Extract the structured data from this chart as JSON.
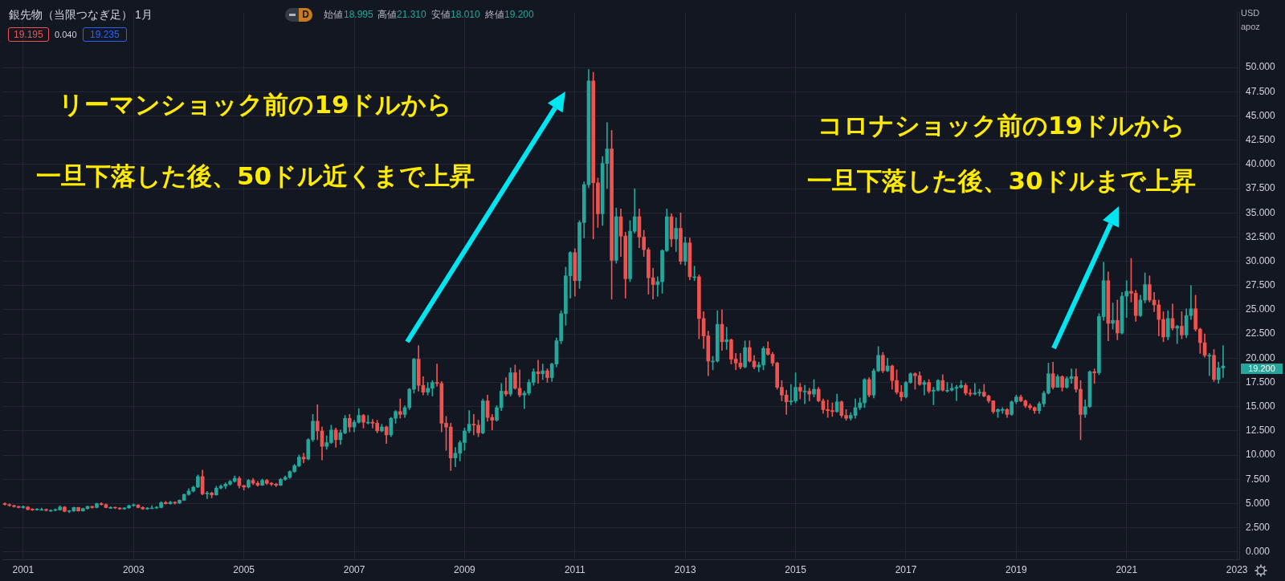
{
  "chart_data": {
    "type": "candlestick",
    "title": "銀先物（当限つなぎ足）",
    "subtitle": "1月",
    "grid": true,
    "legend": false,
    "ylim": [
      -0.8,
      55.7
    ],
    "yticks": [
      {
        "value": 0,
        "label": "0.000"
      },
      {
        "value": 2.5,
        "label": "2.500"
      },
      {
        "value": 5,
        "label": "5.000"
      },
      {
        "value": 7.5,
        "label": "7.500"
      },
      {
        "value": 10,
        "label": "10.000"
      },
      {
        "value": 12.5,
        "label": "12.500"
      },
      {
        "value": 15,
        "label": "15.000"
      },
      {
        "value": 17.5,
        "label": "17.500"
      },
      {
        "value": 20,
        "label": "20.000"
      },
      {
        "value": 22.5,
        "label": "22.500"
      },
      {
        "value": 25,
        "label": "25.000"
      },
      {
        "value": 27.5,
        "label": "27.500"
      },
      {
        "value": 30,
        "label": "30.000"
      },
      {
        "value": 32.5,
        "label": "32.500"
      },
      {
        "value": 35,
        "label": "35.000"
      },
      {
        "value": 37.5,
        "label": "37.500"
      },
      {
        "value": 40,
        "label": "40.000"
      },
      {
        "value": 42.5,
        "label": "42.500"
      },
      {
        "value": 45,
        "label": "45.000"
      },
      {
        "value": 47.5,
        "label": "47.500"
      },
      {
        "value": 50,
        "label": "50.000"
      }
    ],
    "annotations": [
      "D",
      "始値",
      "18.995",
      "高値",
      "21.310",
      "安値",
      "18.010",
      "終値",
      "19.200",
      "19.195",
      "0.040",
      "19.235",
      "USD",
      "apoz",
      "リーマンショック前の19ドルから",
      "一旦下落した後、50ドル近くまで上昇",
      "コロナショック前の19ドルから",
      "一旦下落した後、30ドルまで上昇",
      "19.200"
    ],
    "categories": [
      null,
      null,
      null,
      null,
      "2001",
      null,
      null,
      null,
      null,
      null,
      null,
      null,
      null,
      null,
      null,
      null,
      null,
      null,
      null,
      null,
      null,
      null,
      null,
      null,
      null,
      null,
      null,
      null,
      "2003",
      null,
      null,
      null,
      null,
      null,
      null,
      null,
      null,
      null,
      null,
      null,
      null,
      null,
      null,
      null,
      null,
      null,
      null,
      null,
      null,
      null,
      null,
      null,
      "2005",
      null,
      null,
      null,
      null,
      null,
      null,
      null,
      null,
      null,
      null,
      null,
      null,
      null,
      null,
      null,
      null,
      null,
      null,
      null,
      null,
      null,
      null,
      null,
      "2007",
      null,
      null,
      null,
      null,
      null,
      null,
      null,
      null,
      null,
      null,
      null,
      null,
      null,
      null,
      null,
      null,
      null,
      null,
      null,
      null,
      null,
      null,
      null,
      "2009",
      null,
      null,
      null,
      null,
      null,
      null,
      null,
      null,
      null,
      null,
      null,
      null,
      null,
      null,
      null,
      null,
      null,
      null,
      null,
      null,
      null,
      null,
      null,
      "2011",
      null,
      null,
      null,
      null,
      null,
      null,
      null,
      null,
      null,
      null,
      null,
      null,
      null,
      null,
      null,
      null,
      null,
      null,
      null,
      null,
      null,
      null,
      null,
      "2013",
      null,
      null,
      null,
      null,
      null,
      null,
      null,
      null,
      null,
      null,
      null,
      null,
      null,
      null,
      null,
      null,
      null,
      null,
      null,
      null,
      null,
      null,
      null,
      "2015",
      null,
      null,
      null,
      null,
      null,
      null,
      null,
      null,
      null,
      null,
      null,
      null,
      null,
      null,
      null,
      null,
      null,
      null,
      null,
      null,
      null,
      null,
      null,
      "2017",
      null,
      null,
      null,
      null,
      null,
      null,
      null,
      null,
      null,
      null,
      null,
      null,
      null,
      null,
      null,
      null,
      null,
      null,
      null,
      null,
      null,
      null,
      null,
      "2019",
      null,
      null,
      null,
      null,
      null,
      null,
      null,
      null,
      null,
      null,
      null,
      null,
      null,
      null,
      null,
      null,
      null,
      null,
      null,
      null,
      null,
      null,
      null,
      "2021",
      null,
      null,
      null,
      null,
      null,
      null,
      null,
      null,
      null,
      null,
      null,
      null,
      null,
      null,
      null,
      null,
      null,
      null,
      null,
      null,
      null,
      null,
      null,
      "2023"
    ],
    "ohlc": [
      [
        5.0,
        5.1,
        4.85,
        4.9
      ],
      [
        4.9,
        4.98,
        4.72,
        4.8
      ],
      [
        4.8,
        4.85,
        4.62,
        4.7
      ],
      [
        4.7,
        4.72,
        4.55,
        4.6
      ],
      [
        4.6,
        4.78,
        4.52,
        4.65
      ],
      [
        4.65,
        4.7,
        4.35,
        4.4
      ],
      [
        4.4,
        4.48,
        4.28,
        4.35
      ],
      [
        4.35,
        4.5,
        4.3,
        4.4
      ],
      [
        4.4,
        4.55,
        4.32,
        4.4
      ],
      [
        4.4,
        4.45,
        4.22,
        4.3
      ],
      [
        4.3,
        4.38,
        4.18,
        4.3
      ],
      [
        4.3,
        4.45,
        4.25,
        4.35
      ],
      [
        4.35,
        4.8,
        4.3,
        4.65
      ],
      [
        4.65,
        4.7,
        4.15,
        4.2
      ],
      [
        4.2,
        4.3,
        4.05,
        4.25
      ],
      [
        4.25,
        4.65,
        4.18,
        4.6
      ],
      [
        4.6,
        4.62,
        4.2,
        4.25
      ],
      [
        4.25,
        4.55,
        4.2,
        4.5
      ],
      [
        4.5,
        4.75,
        4.42,
        4.7
      ],
      [
        4.7,
        4.72,
        4.52,
        4.6
      ],
      [
        4.6,
        5.05,
        4.55,
        5.0
      ],
      [
        5.0,
        5.1,
        4.85,
        4.9
      ],
      [
        4.9,
        4.98,
        4.55,
        4.6
      ],
      [
        4.6,
        4.68,
        4.5,
        4.6
      ],
      [
        4.6,
        4.65,
        4.48,
        4.55
      ],
      [
        4.55,
        4.6,
        4.38,
        4.45
      ],
      [
        4.45,
        4.6,
        4.4,
        4.55
      ],
      [
        4.55,
        4.85,
        4.5,
        4.8
      ],
      [
        4.8,
        4.98,
        4.72,
        4.85
      ],
      [
        4.85,
        4.9,
        4.55,
        4.6
      ],
      [
        4.6,
        4.68,
        4.38,
        4.45
      ],
      [
        4.45,
        4.6,
        4.4,
        4.55
      ],
      [
        4.55,
        4.8,
        4.5,
        4.55
      ],
      [
        4.55,
        4.7,
        4.48,
        4.6
      ],
      [
        4.6,
        5.2,
        4.55,
        5.1
      ],
      [
        5.1,
        5.25,
        4.95,
        5.0
      ],
      [
        5.0,
        5.25,
        4.92,
        5.15
      ],
      [
        5.15,
        5.2,
        4.95,
        5.05
      ],
      [
        5.05,
        5.4,
        5.0,
        5.35
      ],
      [
        5.35,
        6.0,
        5.3,
        5.95
      ],
      [
        5.95,
        6.55,
        5.85,
        6.3
      ],
      [
        6.3,
        6.8,
        6.2,
        6.7
      ],
      [
        6.7,
        7.95,
        6.65,
        7.8
      ],
      [
        7.8,
        8.45,
        5.9,
        6.0
      ],
      [
        6.0,
        6.25,
        5.5,
        6.1
      ],
      [
        6.1,
        6.2,
        5.6,
        5.9
      ],
      [
        5.9,
        6.8,
        5.85,
        6.6
      ],
      [
        6.6,
        6.95,
        6.5,
        6.8
      ],
      [
        6.8,
        7.15,
        6.55,
        7.0
      ],
      [
        7.0,
        7.4,
        6.9,
        7.3
      ],
      [
        7.3,
        7.85,
        7.2,
        7.6
      ],
      [
        7.6,
        7.8,
        6.6,
        6.85
      ],
      [
        6.85,
        6.9,
        6.4,
        6.7
      ],
      [
        6.7,
        7.5,
        6.6,
        7.4
      ],
      [
        7.4,
        7.6,
        6.95,
        7.1
      ],
      [
        7.1,
        7.3,
        6.8,
        6.9
      ],
      [
        6.9,
        7.55,
        6.85,
        7.4
      ],
      [
        7.4,
        7.5,
        6.95,
        7.1
      ],
      [
        7.1,
        7.2,
        6.85,
        7.0
      ],
      [
        7.0,
        7.1,
        6.75,
        6.9
      ],
      [
        6.9,
        7.6,
        6.85,
        7.5
      ],
      [
        7.5,
        7.85,
        7.4,
        7.7
      ],
      [
        7.7,
        8.4,
        7.6,
        8.3
      ],
      [
        8.3,
        9.05,
        8.2,
        8.9
      ],
      [
        8.9,
        10.0,
        8.8,
        9.8
      ],
      [
        9.8,
        10.2,
        9.2,
        9.6
      ],
      [
        9.6,
        11.7,
        9.5,
        11.6
      ],
      [
        11.6,
        14.2,
        11.4,
        13.5
      ],
      [
        13.5,
        15.2,
        11.6,
        12.5
      ],
      [
        12.5,
        12.9,
        9.5,
        10.9
      ],
      [
        10.9,
        12.0,
        10.6,
        11.3
      ],
      [
        11.3,
        13.1,
        11.2,
        12.6
      ],
      [
        12.6,
        12.8,
        10.8,
        11.6
      ],
      [
        11.6,
        12.6,
        11.1,
        12.3
      ],
      [
        12.3,
        14.1,
        12.2,
        13.8
      ],
      [
        13.8,
        14.2,
        12.4,
        12.9
      ],
      [
        12.9,
        13.6,
        12.4,
        13.4
      ],
      [
        13.4,
        14.8,
        13.3,
        14.1
      ],
      [
        14.1,
        14.2,
        12.8,
        13.4
      ],
      [
        13.4,
        14.1,
        13.2,
        13.4
      ],
      [
        13.4,
        13.7,
        12.8,
        13.3
      ],
      [
        13.3,
        13.6,
        12.3,
        12.5
      ],
      [
        12.5,
        13.2,
        12.4,
        12.9
      ],
      [
        12.9,
        13.0,
        11.2,
        12.1
      ],
      [
        12.1,
        13.9,
        11.9,
        13.8
      ],
      [
        13.8,
        14.6,
        13.3,
        14.5
      ],
      [
        14.5,
        15.8,
        13.8,
        14.2
      ],
      [
        14.2,
        15.1,
        13.9,
        14.9
      ],
      [
        14.9,
        16.9,
        14.7,
        16.8
      ],
      [
        16.8,
        20.0,
        16.4,
        19.9
      ],
      [
        19.9,
        21.3,
        16.6,
        17.2
      ],
      [
        17.2,
        18.1,
        16.2,
        16.5
      ],
      [
        16.5,
        17.5,
        16.2,
        16.9
      ],
      [
        16.9,
        17.7,
        16.1,
        17.5
      ],
      [
        17.5,
        19.4,
        17.1,
        17.4
      ],
      [
        17.4,
        17.6,
        12.4,
        13.3
      ],
      [
        13.3,
        14.0,
        10.5,
        12.9
      ],
      [
        12.9,
        13.3,
        8.4,
        9.7
      ],
      [
        9.7,
        10.8,
        8.8,
        10.2
      ],
      [
        10.2,
        11.5,
        9.4,
        11.3
      ],
      [
        11.3,
        12.8,
        10.5,
        12.5
      ],
      [
        12.5,
        14.6,
        12.3,
        13.2
      ],
      [
        13.2,
        14.2,
        12.1,
        13.1
      ],
      [
        13.1,
        13.6,
        11.9,
        12.3
      ],
      [
        12.3,
        15.8,
        12.2,
        15.6
      ],
      [
        15.6,
        16.2,
        13.5,
        13.9
      ],
      [
        13.9,
        14.2,
        12.6,
        13.6
      ],
      [
        13.6,
        15.1,
        13.5,
        14.9
      ],
      [
        14.9,
        17.4,
        14.6,
        16.6
      ],
      [
        16.6,
        18.0,
        16.1,
        16.3
      ],
      [
        16.3,
        19.0,
        16.1,
        18.5
      ],
      [
        18.5,
        19.3,
        16.8,
        16.9
      ],
      [
        16.9,
        18.8,
        16.0,
        16.2
      ],
      [
        16.2,
        16.6,
        14.8,
        16.4
      ],
      [
        16.4,
        17.8,
        16.2,
        17.5
      ],
      [
        17.5,
        18.9,
        17.2,
        18.6
      ],
      [
        18.6,
        19.8,
        17.4,
        18.4
      ],
      [
        18.4,
        19.4,
        17.8,
        18.7
      ],
      [
        18.7,
        18.9,
        17.5,
        18.0
      ],
      [
        18.0,
        19.5,
        17.6,
        19.4
      ],
      [
        19.4,
        22.1,
        19.1,
        21.8
      ],
      [
        21.8,
        24.9,
        21.5,
        24.6
      ],
      [
        24.6,
        29.4,
        23.4,
        28.5
      ],
      [
        28.5,
        31.0,
        26.2,
        30.9
      ],
      [
        30.9,
        31.3,
        26.4,
        28.0
      ],
      [
        28.0,
        34.2,
        27.2,
        34.0
      ],
      [
        34.0,
        38.2,
        32.4,
        37.9
      ],
      [
        37.9,
        49.8,
        37.6,
        48.6
      ],
      [
        48.6,
        49.5,
        32.3,
        38.1
      ],
      [
        38.1,
        38.6,
        33.5,
        34.9
      ],
      [
        34.9,
        40.8,
        33.7,
        40.1
      ],
      [
        40.1,
        44.3,
        37.5,
        41.6
      ],
      [
        41.6,
        43.5,
        26.1,
        30.1
      ],
      [
        30.1,
        35.5,
        29.8,
        34.6
      ],
      [
        34.6,
        35.4,
        30.5,
        32.6
      ],
      [
        32.6,
        33.0,
        26.2,
        28.2
      ],
      [
        28.2,
        34.2,
        27.9,
        33.1
      ],
      [
        33.1,
        37.5,
        32.9,
        34.6
      ],
      [
        34.6,
        35.4,
        31.4,
        32.5
      ],
      [
        32.5,
        33.2,
        30.5,
        31.2
      ],
      [
        31.2,
        31.4,
        26.6,
        28.3
      ],
      [
        28.3,
        29.3,
        26.1,
        27.6
      ],
      [
        27.6,
        28.4,
        26.4,
        27.9
      ],
      [
        27.9,
        31.2,
        26.7,
        31.1
      ],
      [
        31.1,
        35.4,
        31.0,
        34.6
      ],
      [
        34.6,
        34.9,
        31.5,
        32.3
      ],
      [
        32.3,
        34.5,
        31.0,
        33.4
      ],
      [
        33.4,
        35.0,
        29.7,
        30.0
      ],
      [
        30.0,
        32.5,
        29.6,
        31.9
      ],
      [
        31.9,
        32.4,
        28.1,
        28.4
      ],
      [
        28.4,
        29.5,
        28.0,
        28.4
      ],
      [
        28.4,
        28.6,
        22.0,
        24.1
      ],
      [
        24.1,
        24.8,
        21.0,
        22.3
      ],
      [
        22.3,
        22.8,
        18.2,
        19.7
      ],
      [
        19.7,
        20.2,
        18.8,
        19.7
      ],
      [
        19.7,
        24.9,
        19.6,
        23.5
      ],
      [
        23.5,
        25.0,
        20.8,
        21.7
      ],
      [
        21.7,
        23.2,
        20.9,
        21.9
      ],
      [
        21.9,
        22.0,
        19.4,
        19.9
      ],
      [
        19.9,
        20.5,
        18.8,
        19.5
      ],
      [
        19.5,
        20.5,
        18.9,
        19.1
      ],
      [
        19.1,
        21.8,
        19.0,
        21.1
      ],
      [
        21.1,
        21.8,
        19.6,
        19.7
      ],
      [
        19.7,
        20.3,
        18.9,
        19.1
      ],
      [
        19.1,
        19.6,
        18.6,
        19.3
      ],
      [
        19.3,
        21.2,
        18.8,
        21.0
      ],
      [
        21.0,
        21.7,
        20.3,
        20.4
      ],
      [
        20.4,
        20.6,
        19.2,
        19.5
      ],
      [
        19.5,
        19.6,
        16.8,
        17.0
      ],
      [
        17.0,
        17.7,
        15.6,
        16.2
      ],
      [
        16.2,
        16.7,
        14.2,
        15.5
      ],
      [
        15.5,
        17.3,
        15.2,
        15.6
      ],
      [
        15.6,
        18.5,
        15.4,
        17.0
      ],
      [
        17.0,
        17.4,
        15.8,
        16.6
      ],
      [
        16.6,
        17.2,
        15.3,
        16.6
      ],
      [
        16.6,
        16.9,
        15.6,
        16.3
      ],
      [
        16.3,
        17.8,
        16.0,
        16.8
      ],
      [
        16.8,
        17.0,
        15.5,
        15.6
      ],
      [
        15.6,
        15.8,
        14.3,
        14.7
      ],
      [
        14.7,
        15.7,
        13.9,
        14.6
      ],
      [
        14.6,
        15.4,
        14.0,
        14.5
      ],
      [
        14.5,
        16.3,
        14.4,
        15.5
      ],
      [
        15.5,
        15.6,
        13.9,
        14.1
      ],
      [
        14.1,
        14.7,
        13.6,
        13.8
      ],
      [
        13.8,
        14.4,
        13.6,
        14.1
      ],
      [
        14.1,
        15.8,
        13.8,
        14.9
      ],
      [
        14.9,
        15.9,
        14.7,
        15.4
      ],
      [
        15.4,
        17.9,
        14.9,
        17.8
      ],
      [
        17.8,
        18.0,
        16.0,
        16.2
      ],
      [
        16.2,
        18.9,
        15.9,
        18.7
      ],
      [
        18.7,
        21.2,
        18.6,
        20.3
      ],
      [
        20.3,
        20.6,
        18.5,
        18.7
      ],
      [
        18.7,
        20.0,
        18.6,
        19.2
      ],
      [
        19.2,
        19.3,
        16.8,
        17.7
      ],
      [
        17.7,
        18.8,
        16.3,
        16.5
      ],
      [
        16.5,
        17.2,
        15.6,
        16.0
      ],
      [
        16.0,
        17.6,
        15.9,
        17.5
      ],
      [
        17.5,
        18.5,
        17.4,
        18.4
      ],
      [
        18.4,
        18.5,
        16.8,
        18.2
      ],
      [
        18.2,
        18.6,
        17.2,
        17.3
      ],
      [
        17.3,
        17.7,
        16.2,
        17.5
      ],
      [
        17.5,
        17.8,
        16.4,
        16.6
      ],
      [
        16.6,
        17.0,
        15.2,
        16.7
      ],
      [
        16.7,
        17.8,
        16.6,
        17.7
      ],
      [
        17.7,
        18.3,
        16.6,
        16.7
      ],
      [
        16.7,
        17.5,
        16.5,
        16.7
      ],
      [
        16.7,
        17.4,
        16.6,
        16.9
      ],
      [
        16.9,
        17.2,
        15.6,
        17.0
      ],
      [
        17.0,
        17.7,
        16.9,
        17.2
      ],
      [
        17.2,
        17.4,
        16.2,
        16.4
      ],
      [
        16.4,
        16.8,
        16.1,
        16.3
      ],
      [
        16.3,
        17.4,
        16.2,
        16.4
      ],
      [
        16.4,
        16.8,
        16.1,
        16.5
      ],
      [
        16.5,
        17.3,
        16.0,
        16.1
      ],
      [
        16.1,
        16.2,
        15.4,
        15.6
      ],
      [
        15.6,
        15.6,
        14.3,
        14.5
      ],
      [
        14.5,
        14.8,
        13.9,
        14.7
      ],
      [
        14.7,
        14.9,
        14.3,
        14.7
      ],
      [
        14.7,
        14.8,
        13.9,
        14.2
      ],
      [
        14.2,
        15.6,
        14.1,
        15.5
      ],
      [
        15.5,
        16.2,
        15.3,
        16.0
      ],
      [
        16.0,
        16.2,
        15.5,
        15.6
      ],
      [
        15.6,
        15.7,
        14.9,
        15.1
      ],
      [
        15.1,
        15.3,
        14.7,
        14.9
      ],
      [
        14.9,
        15.0,
        14.3,
        14.6
      ],
      [
        14.6,
        15.5,
        14.3,
        15.3
      ],
      [
        15.3,
        16.6,
        15.0,
        16.4
      ],
      [
        16.4,
        19.5,
        16.3,
        18.4
      ],
      [
        18.4,
        19.6,
        16.8,
        17.0
      ],
      [
        17.0,
        18.3,
        17.0,
        18.1
      ],
      [
        18.1,
        18.2,
        16.6,
        17.0
      ],
      [
        17.0,
        18.1,
        16.9,
        17.9
      ],
      [
        17.9,
        18.9,
        17.4,
        18.1
      ],
      [
        18.1,
        18.9,
        16.5,
        16.8
      ],
      [
        16.8,
        17.7,
        11.6,
        14.2
      ],
      [
        14.2,
        15.7,
        13.9,
        15.0
      ],
      [
        15.0,
        18.7,
        14.9,
        18.6
      ],
      [
        18.6,
        18.9,
        17.4,
        18.5
      ],
      [
        18.5,
        24.6,
        18.3,
        24.3
      ],
      [
        24.3,
        29.9,
        23.9,
        28.0
      ],
      [
        28.0,
        28.9,
        21.8,
        23.6
      ],
      [
        23.6,
        25.7,
        23.0,
        23.9
      ],
      [
        23.9,
        26.0,
        21.9,
        22.6
      ],
      [
        22.6,
        26.8,
        22.5,
        26.4
      ],
      [
        26.4,
        28.0,
        24.2,
        26.9
      ],
      [
        26.9,
        30.3,
        25.8,
        26.7
      ],
      [
        26.7,
        27.0,
        23.8,
        24.4
      ],
      [
        24.4,
        26.5,
        24.3,
        26.0
      ],
      [
        26.0,
        28.8,
        25.7,
        27.6
      ],
      [
        27.6,
        28.5,
        25.8,
        26.0
      ],
      [
        26.0,
        26.8,
        24.8,
        25.5
      ],
      [
        25.5,
        26.0,
        22.3,
        24.0
      ],
      [
        24.0,
        24.8,
        21.7,
        22.2
      ],
      [
        22.2,
        24.9,
        21.9,
        24.1
      ],
      [
        24.1,
        25.6,
        22.9,
        23.1
      ],
      [
        23.1,
        23.4,
        21.5,
        23.3
      ],
      [
        23.3,
        24.8,
        22.0,
        22.4
      ],
      [
        22.4,
        25.1,
        22.1,
        24.4
      ],
      [
        24.4,
        27.5,
        24.0,
        25.1
      ],
      [
        25.1,
        26.5,
        22.8,
        23.0
      ],
      [
        23.0,
        23.1,
        20.5,
        21.6
      ],
      [
        21.6,
        22.5,
        20.1,
        20.3
      ],
      [
        20.3,
        20.5,
        18.2,
        20.3
      ],
      [
        20.3,
        20.9,
        17.6,
        17.8
      ],
      [
        17.8,
        19.6,
        17.4,
        19.0
      ],
      [
        18.995,
        21.31,
        18.01,
        19.2
      ],
      null,
      null,
      null
    ]
  }
}
